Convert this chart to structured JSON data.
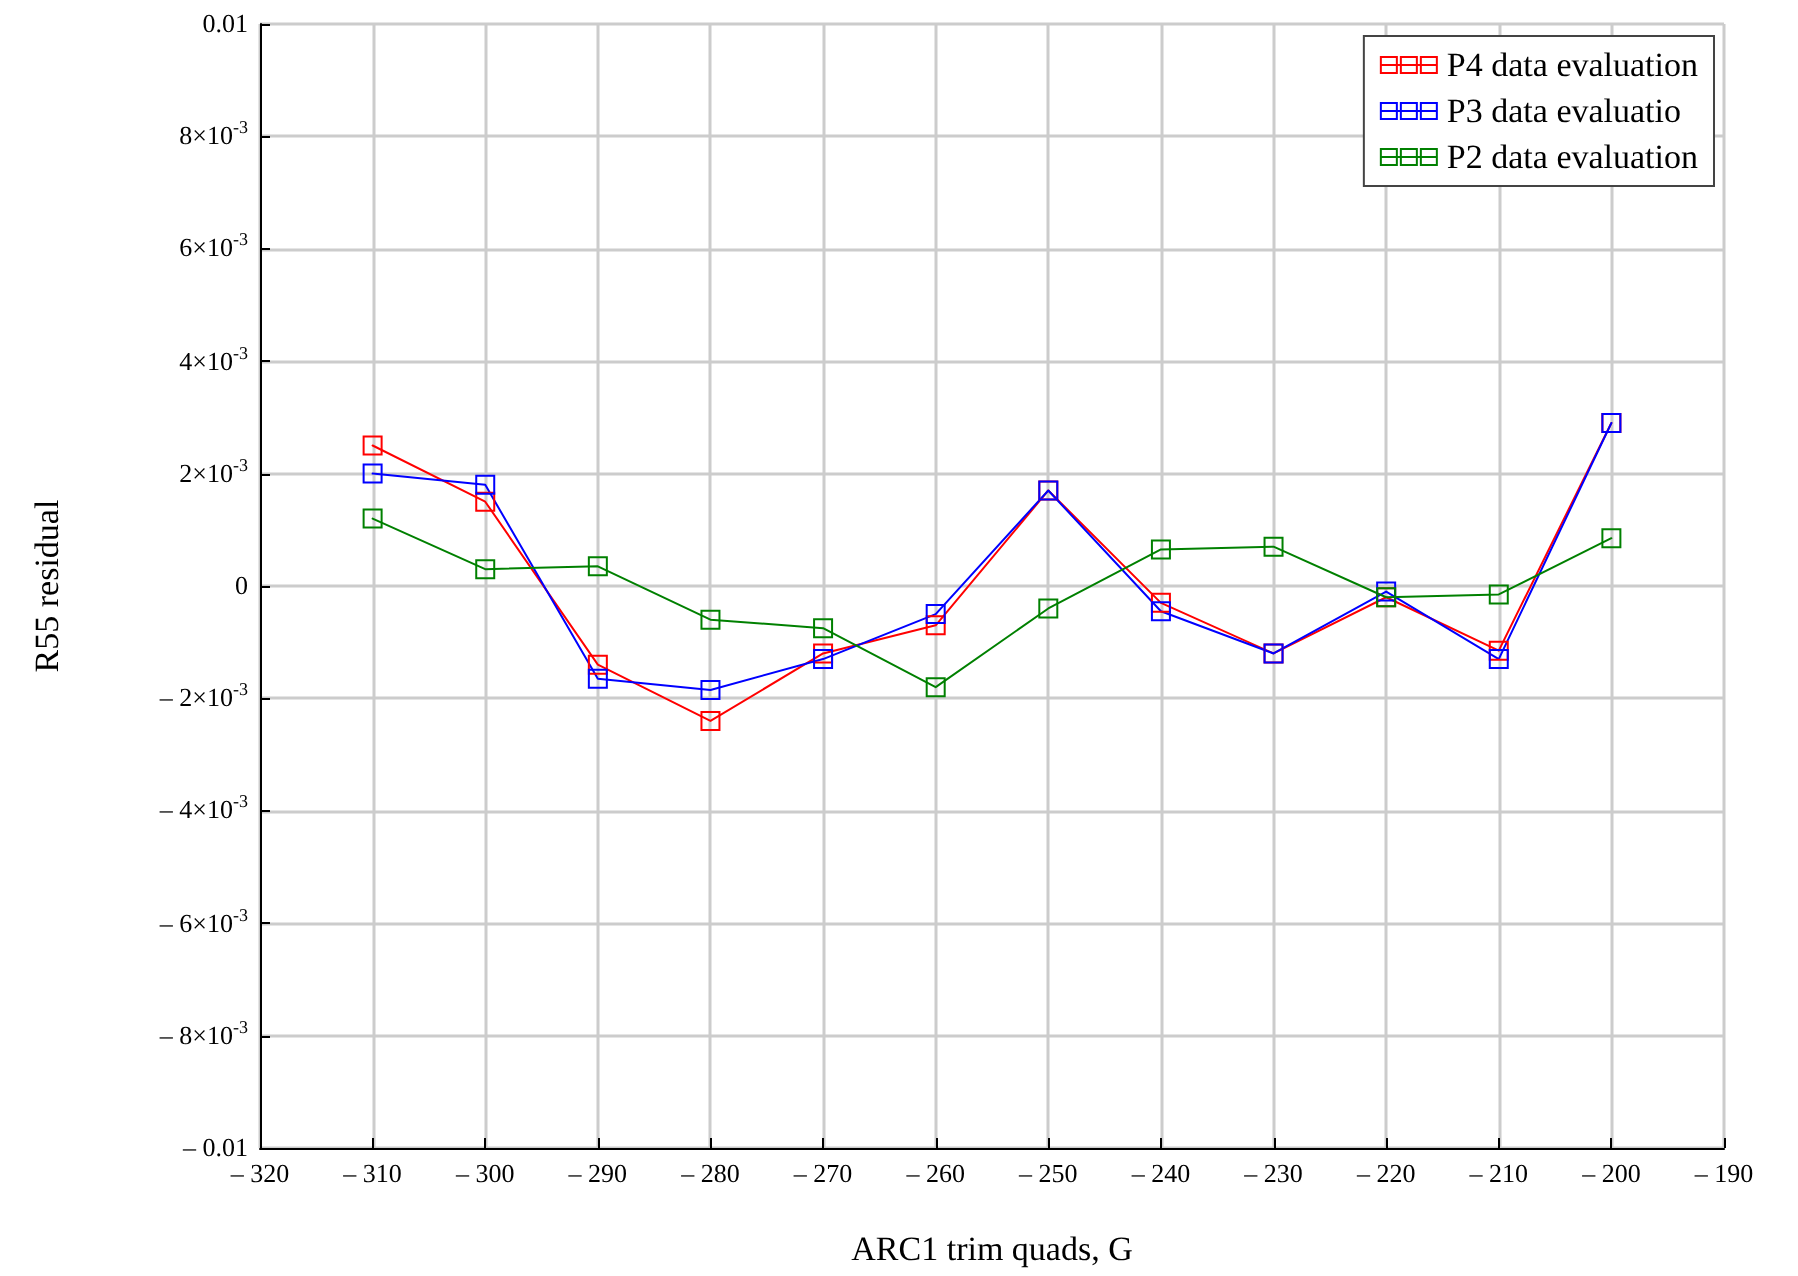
{
  "chart_data": {
    "type": "line",
    "xlabel": "ARC1 trim quads, G",
    "ylabel": "R55 residual",
    "x": [
      -310,
      -300,
      -290,
      -280,
      -270,
      -260,
      -250,
      -240,
      -230,
      -220,
      -210,
      -200
    ],
    "series": [
      {
        "name": "P4 data evaluation",
        "color": "#ff0000",
        "values": [
          0.0025,
          0.0015,
          -0.0014,
          -0.0024,
          -0.0012,
          -0.0007,
          0.0017,
          -0.0003,
          -0.0012,
          -0.0002,
          -0.00115,
          0.0029
        ]
      },
      {
        "name": "P3 data evaluatio",
        "color": "#0000ff",
        "values": [
          0.002,
          0.0018,
          -0.00165,
          -0.00185,
          -0.0013,
          -0.0005,
          0.0017,
          -0.00045,
          -0.0012,
          -0.0001,
          -0.0013,
          0.0029
        ]
      },
      {
        "name": "P2 data evaluation",
        "color": "#008000",
        "values": [
          0.0012,
          0.0003,
          0.00035,
          -0.0006,
          -0.00075,
          -0.0018,
          -0.0004,
          0.00065,
          0.0007,
          -0.0002,
          -0.00015,
          0.00085
        ]
      }
    ],
    "xlim": [
      -320,
      -190
    ],
    "xticks": [
      {
        "value": -320,
        "label": "– 320"
      },
      {
        "value": -310,
        "label": "– 310"
      },
      {
        "value": -300,
        "label": "– 300"
      },
      {
        "value": -290,
        "label": "– 290"
      },
      {
        "value": -280,
        "label": "– 280"
      },
      {
        "value": -270,
        "label": "– 270"
      },
      {
        "value": -260,
        "label": "– 260"
      },
      {
        "value": -250,
        "label": "– 250"
      },
      {
        "value": -240,
        "label": "– 240"
      },
      {
        "value": -230,
        "label": "– 230"
      },
      {
        "value": -220,
        "label": "– 220"
      },
      {
        "value": -210,
        "label": "– 210"
      },
      {
        "value": -200,
        "label": "– 200"
      },
      {
        "value": -190,
        "label": "– 190"
      }
    ],
    "ylim": [
      -0.01,
      0.01
    ],
    "yticks": [
      {
        "value": -0.01,
        "label": "– 0.01"
      },
      {
        "value": -0.008,
        "label": "– 8×10$^{-3}$"
      },
      {
        "value": -0.006,
        "label": "– 6×10$^{-3}$"
      },
      {
        "value": -0.004,
        "label": "– 4×10$^{-3}$"
      },
      {
        "value": -0.002,
        "label": "– 2×10$^{-3}$"
      },
      0,
      {
        "value": 0.002,
        "label": "2×10$^{-3}$"
      },
      {
        "value": 0.004,
        "label": "4×10$^{-3}$"
      },
      {
        "value": 0.006,
        "label": "6×10$^{-3}$"
      },
      {
        "value": 0.008,
        "label": "8×10$^{-3}$"
      },
      0.01
    ],
    "grid": true,
    "legend": "top right",
    "marker": "square",
    "line_style": "solid"
  }
}
